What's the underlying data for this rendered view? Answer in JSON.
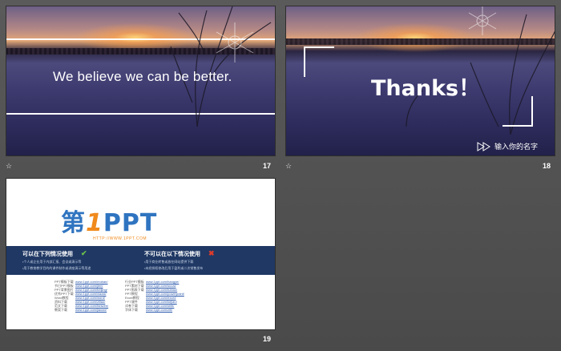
{
  "slides": [
    {
      "number": "17",
      "caption": "We believe we can be better."
    },
    {
      "number": "18",
      "title": "Thanks！",
      "name_placeholder": "输入你的名字"
    },
    {
      "number": "19",
      "logo_cn": "第",
      "logo_one": "1",
      "logo_ppt": "PPT",
      "logo_url": "HTTP://WWW.1PPT.COM",
      "allowed": {
        "title": "可以在下列情况使用",
        "lines": [
          "•个人或企业用于内部汇报、会议或演示等",
          "•用于教育教学目的的课件制作或讲座演示等用途"
        ]
      },
      "not_allowed": {
        "title": "不可以在以下情况使用",
        "lines": [
          "•用于商业转售或放在网站提供下载",
          "•未经授权修改后用于盈利或二次销售发布"
        ]
      },
      "links_left": [
        {
          "k": "PPT模板下载",
          "u": "www.1ppt.com/moban/"
        },
        {
          "k": "节日PPT模板",
          "u": "www.1ppt.com/jieri/"
        },
        {
          "k": "PPT背景图片",
          "u": "www.1ppt.com/beijing/"
        },
        {
          "k": "优秀PPT下载",
          "u": "www.1ppt.com/xiazai/"
        },
        {
          "k": "Word教程",
          "u": "www.1ppt.com/word/"
        },
        {
          "k": "资料下载",
          "u": "www.1ppt.com/ziliao/"
        },
        {
          "k": "范文下载",
          "u": "www.1ppt.com/fanwen/"
        },
        {
          "k": "教案下载",
          "u": "www.1ppt.com/jiaoan/"
        }
      ],
      "links_right": [
        {
          "k": "行业PPT模板",
          "u": "www.1ppt.com/hangye/"
        },
        {
          "k": "PPT素材下载",
          "u": "www.1ppt.com/sucai/"
        },
        {
          "k": "PPT图表下载",
          "u": "www.1ppt.com/tubiao/"
        },
        {
          "k": "PPT教程",
          "u": "www.1ppt.com/powerpoint/"
        },
        {
          "k": "Excel教程",
          "u": "www.1ppt.com/excel/"
        },
        {
          "k": "PPT课件",
          "u": "www.1ppt.com/kejian/"
        },
        {
          "k": "试卷下载",
          "u": "www.1ppt.com/shiti/"
        },
        {
          "k": "字体下载",
          "u": "www.1ppt.com/ziti/"
        }
      ]
    }
  ],
  "colors": {
    "accent_blue": "#2f74c0",
    "accent_orange": "#f08a1c",
    "band": "#1f3864"
  }
}
